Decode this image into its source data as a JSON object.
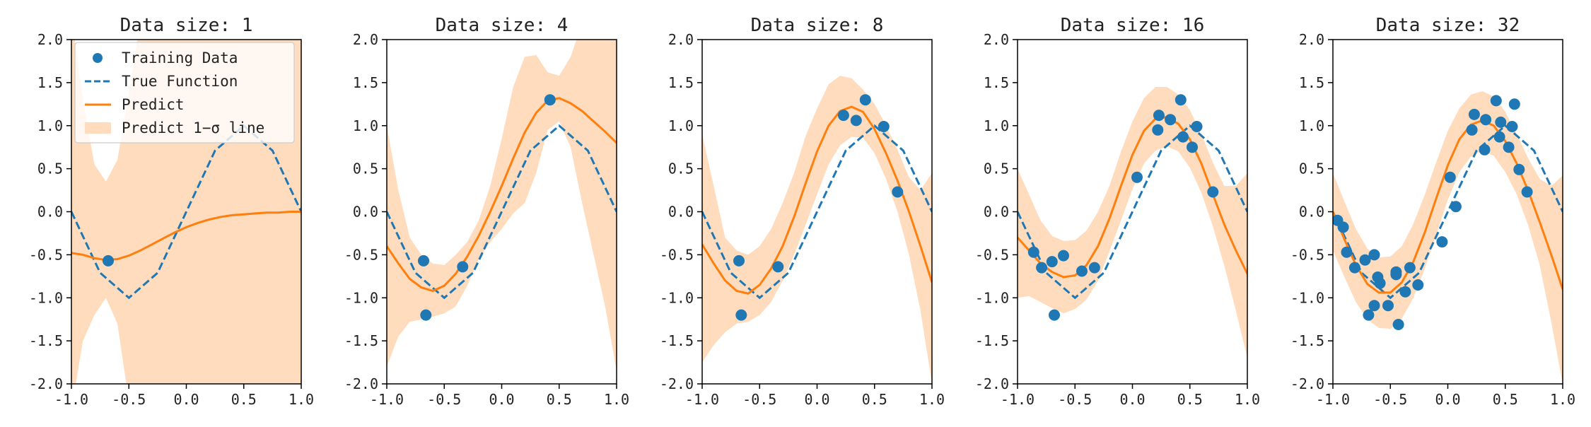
{
  "chart_data": [
    {
      "type": "line",
      "title": "Data size: 1",
      "xlim": [
        -1.0,
        1.0
      ],
      "ylim": [
        -2.0,
        2.0
      ],
      "xticks": [
        "-1.0",
        "-0.5",
        "0.0",
        "0.5",
        "1.0"
      ],
      "yticks": [
        "-2.0",
        "-1.5",
        "-1.0",
        "-0.5",
        "0.0",
        "0.5",
        "1.0",
        "1.5",
        "2.0"
      ],
      "training_data": [
        {
          "x": -0.68,
          "y": -0.57
        }
      ],
      "true_function": {
        "x": [
          -1.0,
          -0.75,
          -0.5,
          -0.25,
          0.0,
          0.25,
          0.5,
          0.75,
          1.0
        ],
        "y": [
          0.0,
          -0.71,
          -1.0,
          -0.71,
          0.0,
          0.71,
          1.0,
          0.71,
          0.0
        ]
      },
      "predict": {
        "x": [
          -1.0,
          -0.9,
          -0.8,
          -0.7,
          -0.6,
          -0.5,
          -0.4,
          -0.3,
          -0.2,
          -0.1,
          0.0,
          0.1,
          0.2,
          0.3,
          0.4,
          0.5,
          0.6,
          0.7,
          0.8,
          0.9,
          1.0
        ],
        "y": [
          -0.48,
          -0.5,
          -0.54,
          -0.56,
          -0.55,
          -0.51,
          -0.45,
          -0.38,
          -0.31,
          -0.24,
          -0.18,
          -0.13,
          -0.09,
          -0.06,
          -0.04,
          -0.03,
          -0.02,
          -0.01,
          -0.01,
          0.0,
          0.0
        ]
      },
      "band_upper": [
        2.3,
        1.3,
        0.55,
        0.35,
        0.6,
        1.4,
        2.2,
        2.6,
        2.6,
        2.6,
        2.6,
        2.6,
        2.6,
        2.6,
        2.6,
        2.6,
        2.6,
        2.6,
        2.6,
        2.6,
        2.6
      ],
      "band_lower": [
        -2.3,
        -1.5,
        -1.2,
        -1.0,
        -1.3,
        -2.2,
        -2.6,
        -2.6,
        -2.6,
        -2.6,
        -2.6,
        -2.6,
        -2.6,
        -2.6,
        -2.6,
        -2.6,
        -2.6,
        -2.6,
        -2.6,
        -2.6,
        -2.6
      ]
    },
    {
      "type": "line",
      "title": "Data size: 4",
      "xlim": [
        -1.0,
        1.0
      ],
      "ylim": [
        -2.0,
        2.0
      ],
      "xticks": [
        "-1.0",
        "-0.5",
        "0.0",
        "0.5",
        "1.0"
      ],
      "yticks": [
        "-2.0",
        "-1.5",
        "-1.0",
        "-0.5",
        "0.0",
        "0.5",
        "1.0",
        "1.5",
        "2.0"
      ],
      "training_data": [
        {
          "x": -0.68,
          "y": -0.57
        },
        {
          "x": -0.66,
          "y": -1.2
        },
        {
          "x": -0.34,
          "y": -0.64
        },
        {
          "x": 0.42,
          "y": 1.3
        }
      ],
      "true_function": {
        "x": [
          -1.0,
          -0.75,
          -0.5,
          -0.25,
          0.0,
          0.25,
          0.5,
          0.75,
          1.0
        ],
        "y": [
          0.0,
          -0.71,
          -1.0,
          -0.71,
          0.0,
          0.71,
          1.0,
          0.71,
          0.0
        ]
      },
      "predict": {
        "x": [
          -1.0,
          -0.9,
          -0.8,
          -0.7,
          -0.6,
          -0.5,
          -0.4,
          -0.3,
          -0.2,
          -0.1,
          0.0,
          0.1,
          0.2,
          0.3,
          0.4,
          0.5,
          0.6,
          0.7,
          0.8,
          0.9,
          1.0
        ],
        "y": [
          -0.4,
          -0.6,
          -0.78,
          -0.88,
          -0.92,
          -0.86,
          -0.72,
          -0.52,
          -0.28,
          0.0,
          0.3,
          0.62,
          0.92,
          1.15,
          1.29,
          1.32,
          1.26,
          1.17,
          1.05,
          0.93,
          0.8
        ]
      },
      "band_upper": [
        1.0,
        0.25,
        -0.3,
        -0.5,
        -0.6,
        -0.62,
        -0.5,
        -0.35,
        -0.1,
        0.3,
        0.85,
        1.45,
        1.8,
        1.82,
        1.62,
        1.58,
        1.8,
        2.2,
        2.5,
        2.6,
        2.6
      ],
      "band_lower": [
        -1.8,
        -1.45,
        -1.28,
        -1.25,
        -1.22,
        -1.18,
        -1.1,
        -0.86,
        -0.55,
        -0.35,
        -0.2,
        -0.02,
        0.1,
        0.45,
        0.95,
        1.05,
        0.75,
        0.1,
        -0.5,
        -1.1,
        -1.85
      ]
    },
    {
      "type": "line",
      "title": "Data size: 8",
      "xlim": [
        -1.0,
        1.0
      ],
      "ylim": [
        -2.0,
        2.0
      ],
      "xticks": [
        "-1.0",
        "-0.5",
        "0.0",
        "0.5",
        "1.0"
      ],
      "yticks": [
        "-2.0",
        "-1.5",
        "-1.0",
        "-0.5",
        "0.0",
        "0.5",
        "1.0",
        "1.5",
        "2.0"
      ],
      "training_data": [
        {
          "x": -0.68,
          "y": -0.57
        },
        {
          "x": -0.66,
          "y": -1.2
        },
        {
          "x": -0.34,
          "y": -0.64
        },
        {
          "x": 0.23,
          "y": 1.12
        },
        {
          "x": 0.34,
          "y": 1.06
        },
        {
          "x": 0.42,
          "y": 1.3
        },
        {
          "x": 0.58,
          "y": 0.99
        },
        {
          "x": 0.7,
          "y": 0.23
        }
      ],
      "true_function": {
        "x": [
          -1.0,
          -0.75,
          -0.5,
          -0.25,
          0.0,
          0.25,
          0.5,
          0.75,
          1.0
        ],
        "y": [
          0.0,
          -0.71,
          -1.0,
          -0.71,
          0.0,
          0.71,
          1.0,
          0.71,
          0.0
        ]
      },
      "predict": {
        "x": [
          -1.0,
          -0.9,
          -0.8,
          -0.7,
          -0.6,
          -0.5,
          -0.4,
          -0.3,
          -0.2,
          -0.1,
          0.0,
          0.1,
          0.2,
          0.3,
          0.4,
          0.5,
          0.6,
          0.7,
          0.8,
          0.9,
          1.0
        ],
        "y": [
          -0.38,
          -0.6,
          -0.8,
          -0.92,
          -0.95,
          -0.85,
          -0.66,
          -0.4,
          -0.06,
          0.33,
          0.7,
          1.0,
          1.17,
          1.22,
          1.16,
          0.96,
          0.68,
          0.36,
          0.0,
          -0.4,
          -0.82
        ]
      },
      "band_upper": [
        0.9,
        0.3,
        -0.3,
        -0.45,
        -0.5,
        -0.4,
        -0.2,
        0.1,
        0.45,
        0.88,
        1.2,
        1.48,
        1.58,
        1.55,
        1.42,
        1.25,
        1.0,
        0.72,
        0.4,
        0.25,
        0.45
      ],
      "band_lower": [
        -1.75,
        -1.55,
        -1.4,
        -1.3,
        -1.28,
        -1.2,
        -1.05,
        -0.8,
        -0.5,
        -0.15,
        0.2,
        0.55,
        0.77,
        0.87,
        0.86,
        0.68,
        0.38,
        0.0,
        -0.5,
        -1.15,
        -2.0
      ]
    },
    {
      "type": "line",
      "title": "Data size: 16",
      "xlim": [
        -1.0,
        1.0
      ],
      "ylim": [
        -2.0,
        2.0
      ],
      "xticks": [
        "-1.0",
        "-0.5",
        "0.0",
        "0.5",
        "1.0"
      ],
      "yticks": [
        "-2.0",
        "-1.5",
        "-1.0",
        "-0.5",
        "0.0",
        "0.5",
        "1.0",
        "1.5",
        "2.0"
      ],
      "training_data": [
        {
          "x": -0.86,
          "y": -0.47
        },
        {
          "x": -0.79,
          "y": -0.65
        },
        {
          "x": -0.7,
          "y": -0.58
        },
        {
          "x": -0.6,
          "y": -0.51
        },
        {
          "x": -0.68,
          "y": -1.2
        },
        {
          "x": -0.44,
          "y": -0.69
        },
        {
          "x": -0.33,
          "y": -0.65
        },
        {
          "x": 0.04,
          "y": 0.4
        },
        {
          "x": 0.23,
          "y": 1.12
        },
        {
          "x": 0.22,
          "y": 0.95
        },
        {
          "x": 0.33,
          "y": 1.07
        },
        {
          "x": 0.42,
          "y": 1.3
        },
        {
          "x": 0.44,
          "y": 0.87
        },
        {
          "x": 0.52,
          "y": 0.75
        },
        {
          "x": 0.56,
          "y": 0.99
        },
        {
          "x": 0.7,
          "y": 0.23
        }
      ],
      "true_function": {
        "x": [
          -1.0,
          -0.75,
          -0.5,
          -0.25,
          0.0,
          0.25,
          0.5,
          0.75,
          1.0
        ],
        "y": [
          0.0,
          -0.71,
          -1.0,
          -0.71,
          0.0,
          0.71,
          1.0,
          0.71,
          0.0
        ]
      },
      "predict": {
        "x": [
          -1.0,
          -0.9,
          -0.8,
          -0.7,
          -0.6,
          -0.5,
          -0.4,
          -0.3,
          -0.2,
          -0.1,
          0.0,
          0.1,
          0.2,
          0.3,
          0.4,
          0.5,
          0.6,
          0.7,
          0.8,
          0.9,
          1.0
        ],
        "y": [
          -0.3,
          -0.45,
          -0.6,
          -0.7,
          -0.76,
          -0.74,
          -0.62,
          -0.4,
          -0.08,
          0.3,
          0.66,
          0.94,
          1.08,
          1.1,
          1.02,
          0.84,
          0.56,
          0.2,
          -0.15,
          -0.45,
          -0.72
        ]
      },
      "band_upper": [
        0.5,
        0.2,
        -0.1,
        -0.28,
        -0.34,
        -0.33,
        -0.22,
        0.0,
        0.3,
        0.7,
        1.05,
        1.32,
        1.45,
        1.45,
        1.36,
        1.18,
        0.9,
        0.57,
        0.3,
        0.3,
        0.45
      ],
      "band_lower": [
        -1.0,
        -0.98,
        -1.05,
        -1.12,
        -1.18,
        -1.13,
        -1.02,
        -0.8,
        -0.46,
        -0.1,
        0.26,
        0.56,
        0.71,
        0.76,
        0.7,
        0.51,
        0.22,
        -0.17,
        -0.63,
        -1.15,
        -1.7
      ]
    },
    {
      "type": "line",
      "title": "Data size: 32",
      "xlim": [
        -1.0,
        1.0
      ],
      "ylim": [
        -2.0,
        2.0
      ],
      "xticks": [
        "-1.0",
        "-0.5",
        "0.0",
        "0.5",
        "1.0"
      ],
      "yticks": [
        "-2.0",
        "-1.5",
        "-1.0",
        "-0.5",
        "0.0",
        "0.5",
        "1.0",
        "1.5",
        "2.0"
      ],
      "training_data": [
        {
          "x": -0.96,
          "y": -0.1
        },
        {
          "x": -0.91,
          "y": -0.18
        },
        {
          "x": -0.88,
          "y": -0.47
        },
        {
          "x": -0.81,
          "y": -0.65
        },
        {
          "x": -0.72,
          "y": -0.56
        },
        {
          "x": -0.64,
          "y": -0.5
        },
        {
          "x": -0.61,
          "y": -0.76
        },
        {
          "x": -0.59,
          "y": -0.83
        },
        {
          "x": -0.69,
          "y": -1.2
        },
        {
          "x": -0.64,
          "y": -1.09
        },
        {
          "x": -0.52,
          "y": -1.09
        },
        {
          "x": -0.45,
          "y": -0.7
        },
        {
          "x": -0.45,
          "y": -0.73
        },
        {
          "x": -0.43,
          "y": -1.31
        },
        {
          "x": -0.37,
          "y": -0.93
        },
        {
          "x": -0.33,
          "y": -0.65
        },
        {
          "x": -0.26,
          "y": -0.85
        },
        {
          "x": -0.05,
          "y": -0.35
        },
        {
          "x": 0.02,
          "y": 0.4
        },
        {
          "x": 0.07,
          "y": 0.06
        },
        {
          "x": 0.21,
          "y": 0.95
        },
        {
          "x": 0.23,
          "y": 1.13
        },
        {
          "x": 0.33,
          "y": 1.07
        },
        {
          "x": 0.32,
          "y": 0.72
        },
        {
          "x": 0.42,
          "y": 1.29
        },
        {
          "x": 0.45,
          "y": 0.87
        },
        {
          "x": 0.46,
          "y": 1.04
        },
        {
          "x": 0.53,
          "y": 0.75
        },
        {
          "x": 0.56,
          "y": 0.99
        },
        {
          "x": 0.58,
          "y": 1.25
        },
        {
          "x": 0.62,
          "y": 0.49
        },
        {
          "x": 0.69,
          "y": 0.23
        }
      ],
      "true_function": {
        "x": [
          -1.0,
          -0.75,
          -0.5,
          -0.25,
          0.0,
          0.25,
          0.5,
          0.75,
          1.0
        ],
        "y": [
          0.0,
          -0.71,
          -1.0,
          -0.71,
          0.0,
          0.71,
          1.0,
          0.71,
          0.0
        ]
      },
      "predict": {
        "x": [
          -1.0,
          -0.9,
          -0.8,
          -0.7,
          -0.6,
          -0.5,
          -0.4,
          -0.3,
          -0.2,
          -0.1,
          0.0,
          0.1,
          0.2,
          0.3,
          0.4,
          0.5,
          0.6,
          0.7,
          0.8,
          0.9,
          1.0
        ],
        "y": [
          0.0,
          -0.32,
          -0.62,
          -0.84,
          -0.94,
          -0.94,
          -0.82,
          -0.58,
          -0.24,
          0.16,
          0.54,
          0.84,
          1.01,
          1.06,
          1.0,
          0.82,
          0.56,
          0.24,
          -0.12,
          -0.5,
          -0.9
        ]
      },
      "band_upper": [
        0.45,
        0.12,
        -0.2,
        -0.43,
        -0.53,
        -0.52,
        -0.4,
        -0.14,
        0.2,
        0.58,
        0.94,
        1.2,
        1.36,
        1.4,
        1.34,
        1.16,
        0.9,
        0.62,
        0.38,
        0.3,
        0.42
      ],
      "band_lower": [
        -0.45,
        -0.76,
        -1.05,
        -1.25,
        -1.35,
        -1.36,
        -1.24,
        -1.0,
        -0.66,
        -0.26,
        0.14,
        0.46,
        0.64,
        0.71,
        0.65,
        0.46,
        0.2,
        -0.16,
        -0.62,
        -1.28,
        -2.0
      ]
    }
  ],
  "legend": {
    "location": "upper-left",
    "entries": [
      {
        "label": "Training Data",
        "kind": "marker"
      },
      {
        "label": "True Function",
        "kind": "dashed-line"
      },
      {
        "label": "Predict",
        "kind": "line"
      },
      {
        "label": "Predict 1−σ line",
        "kind": "band"
      }
    ]
  },
  "colors": {
    "training_data": "#1f77b4",
    "true_function": "#1f77b4",
    "predict": "#ff7f0e",
    "band": "#ffdcbd",
    "axes": "#000000"
  }
}
